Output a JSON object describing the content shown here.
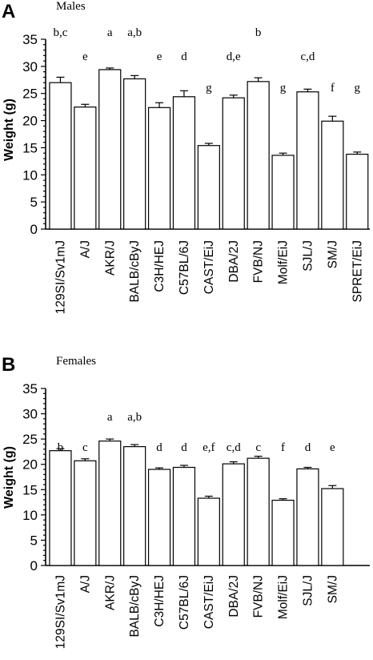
{
  "chart_data": [
    {
      "type": "bar",
      "panel": "A",
      "title": "Males",
      "ylabel": "Weight (g)",
      "ylim": [
        0,
        35
      ],
      "yticks": [
        "0",
        "5",
        "10",
        "15",
        "20",
        "25",
        "30",
        "35"
      ],
      "categories": [
        "129SI/Sv1mJ",
        "A/J",
        "AKR/J",
        "BALB/cByJ",
        "C3H/HEJ",
        "C57BL/6J",
        "CAST/EiJ",
        "DBA/2J",
        "FVB/NJ",
        "Molf/EiJ",
        "SJL/J",
        "SM/J",
        "SPRET/EiJ"
      ],
      "values": [
        27.0,
        22.5,
        29.4,
        27.7,
        22.4,
        24.4,
        15.4,
        24.2,
        27.2,
        13.6,
        25.3,
        19.9,
        13.8
      ],
      "errors": [
        1.0,
        0.5,
        0.3,
        0.6,
        0.9,
        1.1,
        0.4,
        0.5,
        0.7,
        0.4,
        0.5,
        0.9,
        0.4
      ],
      "significance": [
        "b,c",
        "e",
        "a",
        "a,b",
        "e",
        "d",
        "g",
        "d,e",
        "b",
        "g",
        "c,d",
        "f",
        "g"
      ],
      "grid": false,
      "legend": "none"
    },
    {
      "type": "bar",
      "panel": "B",
      "title": "Females",
      "ylabel": "Weight (g)",
      "ylim": [
        0,
        35
      ],
      "yticks": [
        "0",
        "5",
        "10",
        "15",
        "20",
        "25",
        "30",
        "35"
      ],
      "categories": [
        "129SI/Sv1mJ",
        "A/J",
        "AKR/J",
        "BALB/cByJ",
        "C3H/HEJ",
        "C57BL/6J",
        "CAST/EiJ",
        "DBA/2J",
        "FVB/NJ",
        "Molf/EiJ",
        "SJL/J",
        "SM/J"
      ],
      "values": [
        22.7,
        20.7,
        24.6,
        23.5,
        19.0,
        19.4,
        13.3,
        20.1,
        21.2,
        12.9,
        19.1,
        15.2
      ],
      "errors": [
        0.4,
        0.4,
        0.4,
        0.4,
        0.3,
        0.4,
        0.4,
        0.4,
        0.4,
        0.3,
        0.3,
        0.6
      ],
      "significance": [
        "b",
        "c",
        "a",
        "a,b",
        "d",
        "d",
        "e,f",
        "c,d",
        "c",
        "f",
        "d",
        "e"
      ],
      "grid": false,
      "legend": "none"
    }
  ]
}
